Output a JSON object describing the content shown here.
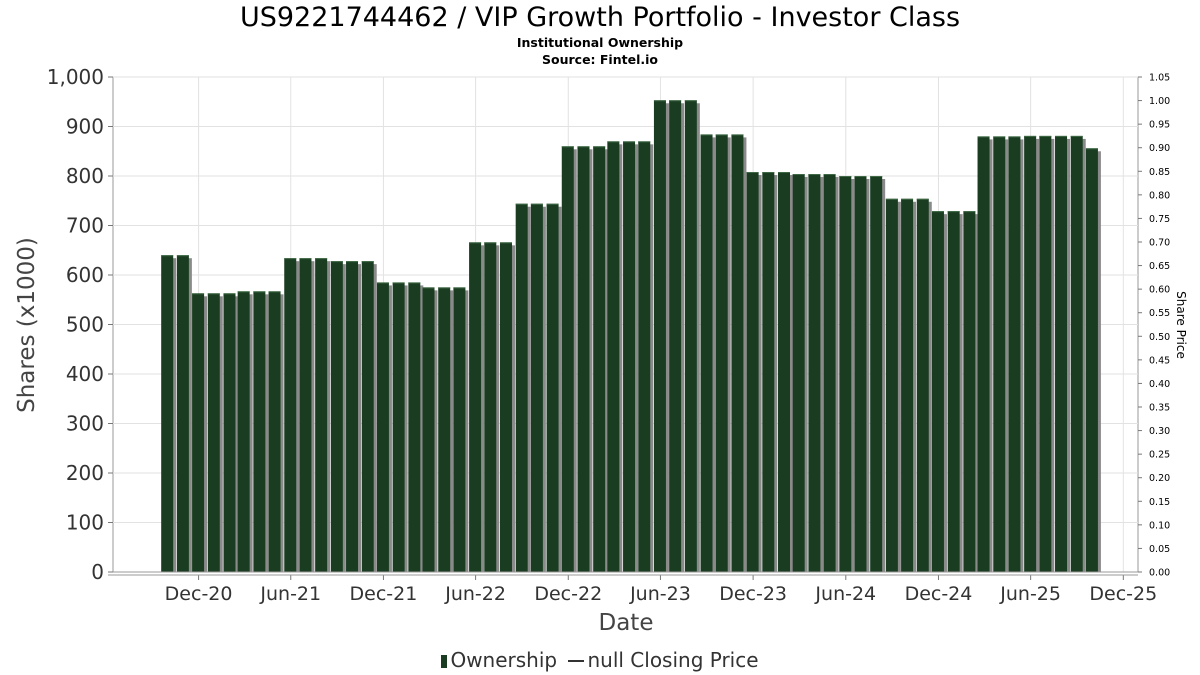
{
  "chart_data": {
    "type": "bar",
    "title": "US9221744462 / VIP Growth Portfolio - Investor Class",
    "subtitle_line1": "Institutional Ownership",
    "subtitle_line2": "Source: Fintel.io",
    "xlabel": "Date",
    "ylabel": "Shares (x1000)",
    "ylabel_right": "Share Price",
    "ylim": [
      0,
      1000
    ],
    "ylim_right": [
      0,
      1.05
    ],
    "yticks": [
      "0",
      "100",
      "200",
      "300",
      "400",
      "500",
      "600",
      "700",
      "800",
      "900",
      "1,000"
    ],
    "yticks_right": [
      "0.00",
      "0.05",
      "0.10",
      "0.15",
      "0.20",
      "0.25",
      "0.30",
      "0.35",
      "0.40",
      "0.45",
      "0.50",
      "0.55",
      "0.60",
      "0.65",
      "0.70",
      "0.75",
      "0.80",
      "0.85",
      "0.90",
      "0.95",
      "1.00",
      "1.05"
    ],
    "xticks": [
      "Dec-20",
      "Jun-21",
      "Dec-21",
      "Jun-22",
      "Dec-22",
      "Jun-23",
      "Dec-23",
      "Jun-24",
      "Dec-24",
      "Jun-25",
      "Dec-25"
    ],
    "grid": true,
    "legend_position": "bottom-center",
    "series": [
      {
        "name": "Ownership",
        "color": "#1a3d22",
        "shadow_color": "#8a8a8a",
        "x": [
          "2020-09-30",
          "2020-10-31",
          "2020-11-30",
          "2020-12-31",
          "2021-01-31",
          "2021-02-28",
          "2021-03-31",
          "2021-04-30",
          "2021-05-31",
          "2021-06-30",
          "2021-07-31",
          "2021-08-31",
          "2021-09-30",
          "2021-10-31",
          "2021-11-30",
          "2021-12-31",
          "2022-01-31",
          "2022-02-28",
          "2022-03-31",
          "2022-04-30",
          "2022-05-31",
          "2022-06-30",
          "2022-07-31",
          "2022-08-31",
          "2022-09-30",
          "2022-10-31",
          "2022-11-30",
          "2022-12-31",
          "2023-01-31",
          "2023-02-28",
          "2023-03-31",
          "2023-04-30",
          "2023-05-31",
          "2023-06-30",
          "2023-07-31",
          "2023-08-31",
          "2023-09-30",
          "2023-10-31",
          "2023-11-30",
          "2023-12-31",
          "2024-01-31",
          "2024-02-29",
          "2024-03-31",
          "2024-04-30",
          "2024-05-31",
          "2024-06-30",
          "2024-07-31",
          "2024-08-31",
          "2024-09-30",
          "2024-10-31",
          "2024-11-30",
          "2024-12-31",
          "2025-01-31",
          "2025-02-28",
          "2025-03-31",
          "2025-04-30",
          "2025-05-31",
          "2025-06-30",
          "2025-07-31",
          "2025-08-31",
          "2025-09-30"
        ],
        "values": [
          640,
          640,
          563,
          563,
          563,
          567,
          567,
          567,
          634,
          634,
          634,
          628,
          628,
          628,
          585,
          585,
          585,
          575,
          575,
          575,
          666,
          666,
          666,
          744,
          744,
          744,
          860,
          860,
          860,
          870,
          870,
          870,
          953,
          953,
          953,
          884,
          884,
          884,
          808,
          808,
          808,
          804,
          804,
          804,
          800,
          800,
          800,
          754,
          754,
          754,
          729,
          729,
          729,
          880,
          880,
          880,
          881,
          881,
          881,
          881,
          856
        ]
      },
      {
        "name": "null Closing Price",
        "color": "#333333",
        "values": []
      }
    ]
  }
}
